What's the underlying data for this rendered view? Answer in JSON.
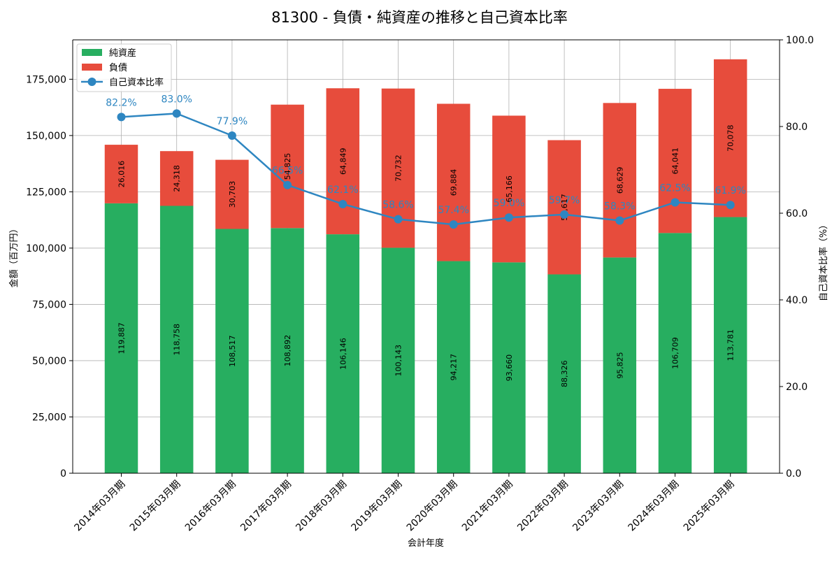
{
  "chart_data": {
    "type": "bar",
    "title": "81300 - 負債・純資産の推移と自己資本比率",
    "xlabel": "会計年度",
    "ylabel": "金額（百万円）",
    "y2label": "自己資本比率（%）",
    "ylim": [
      0,
      192500
    ],
    "y2lim": [
      0,
      100
    ],
    "yticks": [
      "0",
      "25,000",
      "50,000",
      "75,000",
      "100,000",
      "125,000",
      "150,000",
      "175,000"
    ],
    "y2ticks": [
      "0.0",
      "20.0",
      "40.0",
      "60.0",
      "80.0",
      "100.0"
    ],
    "grid": true,
    "legend_position": "top-left",
    "categories": [
      "2014年03月期",
      "2015年03月期",
      "2016年03月期",
      "2017年03月期",
      "2018年03月期",
      "2019年03月期",
      "2020年03月期",
      "2021年03月期",
      "2022年03月期",
      "2023年03月期",
      "2024年03月期",
      "2025年03月期"
    ],
    "series": [
      {
        "name": "純資産",
        "kind": "bar",
        "color": "#27ae60",
        "values": [
          119887,
          118758,
          108517,
          108892,
          106146,
          100143,
          94217,
          93660,
          88326,
          95825,
          106709,
          113781
        ],
        "labels": [
          "119,887",
          "118,758",
          "108,517",
          "108,892",
          "106,146",
          "100,143",
          "94,217",
          "93,660",
          "88,326",
          "95,825",
          "106,709",
          "113,781"
        ]
      },
      {
        "name": "負債",
        "kind": "bar",
        "color": "#e74c3c",
        "values": [
          26016,
          24318,
          30703,
          54825,
          64849,
          70732,
          69884,
          65166,
          59617,
          68629,
          64041,
          70078
        ],
        "labels": [
          "26,016",
          "24,318",
          "30,703",
          "54,825",
          "64,849",
          "70,732",
          "69,884",
          "65,166",
          "59,617",
          "68,629",
          "64,041",
          "70,078"
        ]
      },
      {
        "name": "自己資本比率",
        "kind": "line",
        "axis": "right",
        "color": "#2e86c1",
        "values": [
          82.2,
          83.0,
          77.9,
          66.5,
          62.1,
          58.6,
          57.4,
          59.0,
          59.7,
          58.3,
          62.5,
          61.9
        ],
        "labels": [
          "82.2%",
          "83.0%",
          "77.9%",
          "66.5%",
          "62.1%",
          "58.6%",
          "57.4%",
          "59.0%",
          "59.7%",
          "58.3%",
          "62.5%",
          "61.9%"
        ]
      }
    ]
  }
}
